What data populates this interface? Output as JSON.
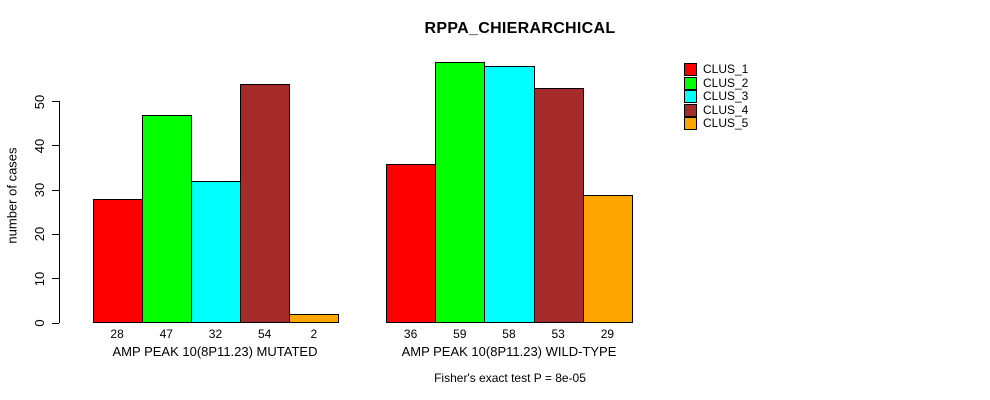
{
  "chart_data": {
    "type": "bar",
    "title": "RPPA_CHIERARCHICAL",
    "xlabel": "",
    "ylabel": "number of cases",
    "ylim": [
      0,
      60
    ],
    "yticks": [
      0,
      10,
      20,
      30,
      40,
      50
    ],
    "grid": false,
    "legend_position": "top-right",
    "series": [
      {
        "name": "CLUS_1",
        "color": "#ff0000"
      },
      {
        "name": "CLUS_2",
        "color": "#00ff00"
      },
      {
        "name": "CLUS_3",
        "color": "#00ffff"
      },
      {
        "name": "CLUS_4",
        "color": "#a52a2a"
      },
      {
        "name": "CLUS_5",
        "color": "#ffa500"
      }
    ],
    "groups": [
      {
        "label": "AMP PEAK 10(8P11.23) MUTATED",
        "values": [
          28,
          47,
          32,
          54,
          2
        ]
      },
      {
        "label": "AMP PEAK 10(8P11.23) WILD-TYPE",
        "values": [
          36,
          59,
          58,
          53,
          29
        ]
      }
    ],
    "annotation": "Fisher's exact test P = 8e-05"
  }
}
